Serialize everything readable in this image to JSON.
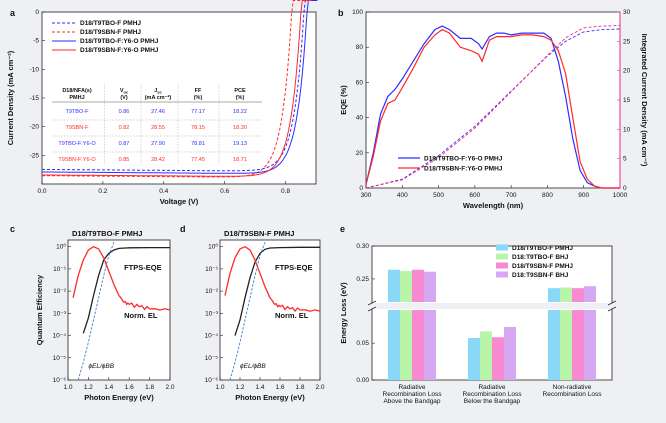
{
  "colors": {
    "blue": "#2d2dff",
    "red": "#ff2a2a",
    "magenta": "#ff2a80",
    "purple": "#7a3fa0",
    "black": "#222222",
    "dashblue": "#3a7fd0",
    "bar_blue": "#8ad8f8",
    "bar_green": "#b8f5a8",
    "bar_pink": "#f78ad0",
    "bar_purple": "#d7a8f2"
  },
  "panels": {
    "a": "a",
    "b": "b",
    "c": "c",
    "d": "d",
    "e": "e"
  },
  "chart_data": [
    {
      "id": "a",
      "type": "line",
      "xlabel": "Voltage (V)",
      "ylabel": "Current Density (mA cm⁻²)",
      "xlim": [
        0,
        0.9
      ],
      "ylim": [
        -30,
        0
      ],
      "xticks": [
        "0.0",
        "0.2",
        "0.4",
        "0.6",
        "0.8"
      ],
      "yticks": [
        "0",
        "-5",
        "-10",
        "-15",
        "-20",
        "-25"
      ],
      "series": [
        {
          "name": "D18/T9TBO-F PMHJ",
          "style": "dash",
          "color": "#2d2dff",
          "voc": 0.86,
          "jsc": 27.46,
          "ff": 0.7717
        },
        {
          "name": "D18/T9SBN-F PMHJ",
          "style": "dash",
          "color": "#ff2a2a",
          "voc": 0.82,
          "jsc": 28.55,
          "ff": 0.7815
        },
        {
          "name": "D18/T9TBO-F:Y6-O PMHJ",
          "style": "solid",
          "color": "#2d2dff",
          "voc": 0.87,
          "jsc": 27.9,
          "ff": 0.7881
        },
        {
          "name": "D18/T9SBN-F:Y6-O PMHJ",
          "style": "solid",
          "color": "#ff2a2a",
          "voc": 0.85,
          "jsc": 28.42,
          "ff": 0.7745
        }
      ],
      "table": {
        "headers": [
          [
            "D18/NFA(s)",
            "PMHJ"
          ],
          [
            "V",
            "oc"
          ],
          [
            "J",
            "sc"
          ],
          [
            "FF",
            "(%)"
          ],
          [
            "PCE",
            "(%)"
          ]
        ],
        "header_units": [
          "",
          "(V)",
          "(mA cm⁻²)",
          "",
          ""
        ],
        "rows": [
          {
            "name": "T9TBO-F",
            "voc": "0.86",
            "jsc": "27.46",
            "ff": "77.17",
            "pce": "18.22",
            "color": "#2d2dff"
          },
          {
            "name": "T9SBN-F",
            "voc": "0.82",
            "jsc": "28.55",
            "ff": "78.15",
            "pce": "18.30",
            "color": "#ff2a2a"
          },
          {
            "name": "T9TBO-F:Y6-O",
            "voc": "0.87",
            "jsc": "27.90",
            "ff": "78.81",
            "pce": "19.13",
            "color": "#2d2dff"
          },
          {
            "name": "T9SBN-F:Y6-O",
            "voc": "0.85",
            "jsc": "28.42",
            "ff": "77.45",
            "pce": "18.71",
            "color": "#ff2a2a"
          }
        ]
      }
    },
    {
      "id": "b",
      "type": "line",
      "xlabel": "Wavelength (nm)",
      "ylabel": "EQE (%)",
      "y2label": "Integrated Current Density (mA cm⁻²)",
      "xlim": [
        300,
        1000
      ],
      "ylim": [
        0,
        100
      ],
      "y2lim": [
        0,
        30
      ],
      "xticks": [
        "300",
        "400",
        "500",
        "600",
        "700",
        "800",
        "900",
        "1000"
      ],
      "yticks": [
        "0",
        "20",
        "40",
        "60",
        "80",
        "100"
      ],
      "y2ticks": [
        "0",
        "5",
        "10",
        "15",
        "20",
        "25",
        "30"
      ],
      "series": [
        {
          "name": "D18/T9TBO-F:Y6-O PMHJ",
          "color": "#2d2dff",
          "x": [
            300,
            320,
            340,
            360,
            380,
            400,
            430,
            460,
            490,
            510,
            530,
            560,
            590,
            610,
            620,
            640,
            660,
            680,
            700,
            730,
            760,
            790,
            810,
            830,
            850,
            870,
            890,
            910,
            930,
            950,
            1000
          ],
          "y": [
            2,
            20,
            42,
            52,
            56,
            62,
            72,
            82,
            90,
            92,
            90,
            85,
            85,
            82,
            79,
            86,
            88,
            88,
            87,
            88,
            88,
            88,
            85,
            72,
            52,
            28,
            10,
            3,
            1,
            0,
            0
          ]
        },
        {
          "name": "D18/T9SBN-F:Y6-O PMHJ",
          "color": "#ff2a2a",
          "x": [
            300,
            320,
            340,
            360,
            380,
            400,
            430,
            460,
            490,
            510,
            530,
            560,
            590,
            610,
            620,
            640,
            660,
            680,
            700,
            730,
            760,
            790,
            810,
            830,
            850,
            870,
            890,
            910,
            930,
            950,
            1000
          ],
          "y": [
            2,
            18,
            38,
            48,
            50,
            57,
            68,
            80,
            87,
            90,
            88,
            80,
            78,
            76,
            72,
            84,
            86,
            86,
            86,
            87,
            87,
            86,
            84,
            78,
            65,
            40,
            15,
            5,
            1,
            0,
            0
          ]
        }
      ],
      "integrated": [
        {
          "color": "#2d2dff",
          "x": [
            300,
            400,
            500,
            600,
            700,
            800,
            850,
            900,
            950,
            1000
          ],
          "y": [
            0,
            1.5,
            5.5,
            10.5,
            16.5,
            22.5,
            25,
            26.6,
            27.0,
            27.1
          ]
        },
        {
          "color": "#ff2a80",
          "x": [
            300,
            400,
            500,
            600,
            700,
            800,
            850,
            900,
            950,
            1000
          ],
          "y": [
            0,
            1.4,
            5.2,
            10.2,
            16.4,
            22.6,
            25.6,
            27.3,
            27.6,
            27.7
          ]
        }
      ]
    },
    {
      "id": "c",
      "type": "line",
      "title": "D18/T9TBO-F PMHJ",
      "xlabel": "Photon Energy (eV)",
      "ylabel": "Quantum Efficiency",
      "xlim": [
        1.0,
        2.0
      ],
      "ylim_log": [
        -6,
        0.3
      ],
      "xticks": [
        "1.0",
        "1.2",
        "1.4",
        "1.6",
        "1.8",
        "2.0"
      ],
      "yticks": [
        "10⁰",
        "10⁻¹",
        "10⁻²",
        "10⁻³",
        "10⁻⁴",
        "10⁻⁵",
        "10⁻⁶"
      ],
      "labels": {
        "eqe": "FTPS-EQE",
        "el": "Norm. EL",
        "ratio": "ϕEL/ϕBB"
      },
      "series": [
        {
          "name": "FTPS-EQE",
          "color": "#222222",
          "x": [
            1.15,
            1.2,
            1.25,
            1.3,
            1.35,
            1.4,
            1.45,
            1.5,
            1.6,
            1.8,
            2.0
          ],
          "logy": [
            -3.9,
            -3.2,
            -2.2,
            -1.3,
            -0.6,
            -0.3,
            -0.15,
            -0.08,
            -0.05,
            -0.04,
            -0.04
          ]
        },
        {
          "name": "Norm. EL",
          "color": "#ff2a2a",
          "x": [
            1.05,
            1.1,
            1.15,
            1.2,
            1.25,
            1.3,
            1.35,
            1.4,
            1.45,
            1.5,
            1.55,
            1.6,
            1.7,
            1.8,
            2.0
          ],
          "logy": [
            -2.3,
            -1.3,
            -0.6,
            -0.15,
            0.0,
            -0.1,
            -0.5,
            -1.1,
            -1.7,
            -2.2,
            -2.5,
            -2.6,
            -2.7,
            -2.8,
            -2.85
          ]
        },
        {
          "name": "ratio",
          "color": "#3a7fd0",
          "x": [
            1.1,
            1.15,
            1.2,
            1.25,
            1.3,
            1.35,
            1.4,
            1.45
          ],
          "logy": [
            -6,
            -5.2,
            -4.3,
            -3.3,
            -2.3,
            -1.3,
            -0.4,
            0.2
          ]
        }
      ]
    },
    {
      "id": "d",
      "type": "line",
      "title": "D18/T9SBN-F PMHJ",
      "xlabel": "Photon Energy (eV)",
      "ylabel": "",
      "xlim": [
        1.0,
        2.0
      ],
      "ylim_log": [
        -6,
        0.3
      ],
      "xticks": [
        "1.0",
        "1.2",
        "1.4",
        "1.6",
        "1.8",
        "2.0"
      ],
      "yticks": [
        "10⁰",
        "10⁻¹",
        "10⁻²",
        "10⁻³",
        "10⁻⁴",
        "10⁻⁵",
        "10⁻⁶"
      ],
      "labels": {
        "eqe": "FTPS-EQE",
        "el": "Norm. EL",
        "ratio": "ϕEL/ϕBB"
      },
      "series": [
        {
          "name": "FTPS-EQE",
          "color": "#222222",
          "x": [
            1.15,
            1.2,
            1.25,
            1.3,
            1.35,
            1.4,
            1.45,
            1.5,
            1.6,
            1.8,
            2.0
          ],
          "logy": [
            -4.0,
            -3.3,
            -2.3,
            -1.4,
            -0.7,
            -0.3,
            -0.12,
            -0.06,
            -0.04,
            -0.03,
            -0.03
          ]
        },
        {
          "name": "Norm. EL",
          "color": "#ff2a2a",
          "x": [
            1.05,
            1.1,
            1.15,
            1.2,
            1.25,
            1.3,
            1.35,
            1.4,
            1.45,
            1.5,
            1.55,
            1.6,
            1.7,
            1.8,
            2.0
          ],
          "logy": [
            -2.2,
            -1.2,
            -0.5,
            -0.1,
            0.0,
            -0.15,
            -0.6,
            -1.2,
            -1.8,
            -2.3,
            -2.6,
            -2.7,
            -2.8,
            -2.85,
            -2.9
          ]
        },
        {
          "name": "ratio",
          "color": "#3a7fd0",
          "x": [
            1.1,
            1.15,
            1.2,
            1.25,
            1.3,
            1.35,
            1.4,
            1.45
          ],
          "logy": [
            -6,
            -5.2,
            -4.3,
            -3.3,
            -2.3,
            -1.3,
            -0.4,
            0.2
          ]
        }
      ]
    },
    {
      "id": "e",
      "type": "bar",
      "ylabel": "Energy Loss (eV)",
      "categories": [
        "Radiative Recombination Loss Above the Bandgap",
        "Radiative Recombination Loss Below the Bandgap",
        "Non-radiative Recombination Loss"
      ],
      "category_lines": [
        [
          "Radiative",
          "Recombination Loss",
          "Above the Bandgap"
        ],
        [
          "Radiative",
          "Recombination Loss",
          "Below the Bandgap"
        ],
        [
          "Non-radiative",
          "Recombination Loss"
        ]
      ],
      "yticks": [
        "0.00",
        "0.05",
        "0.25",
        "0.30"
      ],
      "series": [
        {
          "name": "D18/T9TBO-F PMHJ",
          "color": "#8ad8f8",
          "values": [
            0.264,
            0.057,
            0.236
          ]
        },
        {
          "name": "D18:T9TBO-F BHJ",
          "color": "#b8f5a8",
          "values": [
            0.262,
            0.066,
            0.237
          ]
        },
        {
          "name": "D18/T9SBN-F PMHJ",
          "color": "#f78ad0",
          "values": [
            0.264,
            0.058,
            0.236
          ]
        },
        {
          "name": "D18:T9SBN-F BHJ",
          "color": "#d7a8f2",
          "values": [
            0.261,
            0.072,
            0.239
          ]
        }
      ]
    }
  ]
}
